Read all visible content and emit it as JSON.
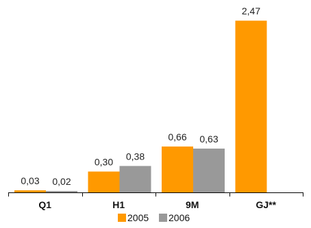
{
  "chart_data": {
    "type": "bar",
    "categories": [
      "Q1",
      "H1",
      "9M",
      "GJ**"
    ],
    "series": [
      {
        "name": "2005",
        "values": [
          0.03,
          0.3,
          0.66,
          2.47
        ],
        "labels": [
          "0,03",
          "0,30",
          "0,66",
          "2,47"
        ],
        "color": "#FF9900"
      },
      {
        "name": "2006",
        "values": [
          0.02,
          0.38,
          0.63,
          null
        ],
        "labels": [
          "0,02",
          "0,38",
          "0,63",
          ""
        ],
        "color": "#999999"
      }
    ],
    "title": "",
    "xlabel": "",
    "ylabel": "",
    "ylim": [
      0,
      2.6
    ],
    "grid": false,
    "legend": "bottom-center",
    "axis_color": "#000000"
  }
}
